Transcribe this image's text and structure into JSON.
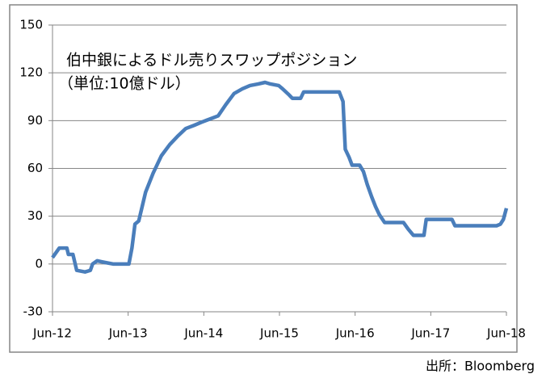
{
  "chart_data": {
    "type": "line",
    "annotation": "伯中銀によるドル売りスワップポジション",
    "annotation_unit": "（単位:10億ドル）",
    "source": "出所：Bloomberg",
    "x": [
      2012.5,
      2012.59,
      2012.69,
      2012.71,
      2012.77,
      2012.82,
      2012.93,
      2013.0,
      2013.03,
      2013.09,
      2013.19,
      2013.3,
      2013.41,
      2013.51,
      2013.55,
      2013.59,
      2013.64,
      2013.68,
      2013.73,
      2013.83,
      2013.94,
      2014.05,
      2014.15,
      2014.26,
      2014.37,
      2014.47,
      2014.58,
      2014.69,
      2014.79,
      2014.9,
      2015.01,
      2015.11,
      2015.22,
      2015.31,
      2015.38,
      2015.49,
      2015.54,
      2015.63,
      2015.67,
      2015.78,
      2015.82,
      2016.29,
      2016.34,
      2016.37,
      2016.42,
      2016.46,
      2016.56,
      2016.61,
      2016.66,
      2016.72,
      2016.77,
      2016.82,
      2016.89,
      2016.93,
      2017.14,
      2017.2,
      2017.27,
      2017.41,
      2017.44,
      2017.78,
      2017.82,
      2018.37,
      2018.42,
      2018.46,
      2018.5
    ],
    "series": [
      {
        "name": "伯中銀によるドル売りスワップポジション",
        "color": "#4a7ebb",
        "values": [
          4,
          10,
          10,
          6,
          6,
          -4,
          -5,
          -4,
          0,
          2,
          1,
          0,
          0,
          0,
          10,
          25,
          27,
          35,
          45,
          57,
          68,
          75,
          80,
          85,
          87,
          89,
          91,
          93,
          100,
          107,
          110,
          112,
          113,
          114,
          113,
          112,
          110,
          106,
          104,
          104,
          108,
          108,
          102,
          72,
          67,
          62,
          62,
          58,
          50,
          42,
          36,
          31,
          26,
          26,
          26,
          22,
          18,
          18,
          28,
          28,
          24,
          24,
          25,
          28,
          35
        ]
      }
    ],
    "xlim": [
      2012.5,
      2018.5
    ],
    "xticks": [
      {
        "value": 2012.5,
        "label": "Jun-12"
      },
      {
        "value": 2013.5,
        "label": "Jun-13"
      },
      {
        "value": 2014.5,
        "label": "Jun-14"
      },
      {
        "value": 2015.5,
        "label": "Jun-15"
      },
      {
        "value": 2016.5,
        "label": "Jun-16"
      },
      {
        "value": 2017.5,
        "label": "Jun-17"
      },
      {
        "value": 2018.5,
        "label": "Jun-18"
      }
    ],
    "ylim": [
      -30,
      150
    ],
    "yticks": [
      -30,
      0,
      30,
      60,
      90,
      120,
      150
    ],
    "grid": true
  }
}
